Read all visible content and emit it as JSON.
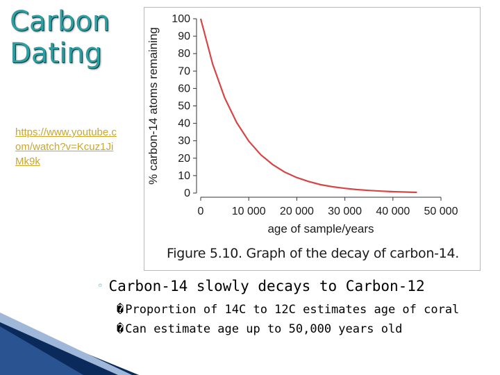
{
  "slide": {
    "title_line1": "Carbon",
    "title_line2": "Dating",
    "link_text": "https://www.youtube.com/watch?v=Kcuz1JiMk9k",
    "accent_color": "#2d9fa3",
    "link_color": "#c7a72f"
  },
  "figure": {
    "caption": "Figure 5.10. Graph of the decay of carbon-14."
  },
  "bullets": {
    "main": "Carbon-14 slowly decays to Carbon-12",
    "main_marker": "◦",
    "sub": [
      {
        "marker": "�",
        "text": "Proportion of 14C to 12C estimates age of coral"
      },
      {
        "marker": "�",
        "text": "Can estimate age up to 50,000 years old"
      }
    ]
  },
  "chart_data": {
    "type": "line",
    "title": "",
    "xlabel": "age of sample/years",
    "ylabel": "% carbon-14 atoms remaining",
    "xlim": [
      0,
      50000
    ],
    "ylim": [
      0,
      100
    ],
    "x_ticks": [
      0,
      10000,
      20000,
      30000,
      40000,
      50000
    ],
    "x_tick_labels": [
      "0",
      "10 000",
      "20 000",
      "30 000",
      "40 000",
      "50 000"
    ],
    "y_ticks": [
      0,
      10,
      20,
      30,
      40,
      50,
      60,
      70,
      80,
      90,
      100
    ],
    "y_tick_labels": [
      "0",
      "10",
      "20",
      "30",
      "40",
      "50",
      "60",
      "70",
      "80",
      "90",
      "100"
    ],
    "grid": false,
    "line_color": "#d64545",
    "series": [
      {
        "x": [
          0,
          2500,
          5000,
          7500,
          10000,
          12500,
          15000,
          17500,
          20000,
          22500,
          25000,
          27500,
          30000,
          32500,
          35000,
          37500,
          40000,
          42500,
          45000
        ],
        "values": [
          100,
          73.9,
          54.6,
          40.4,
          29.8,
          22.0,
          16.3,
          12.0,
          8.9,
          6.6,
          4.8,
          3.6,
          2.7,
          2.0,
          1.5,
          1.1,
          0.8,
          0.6,
          0.4
        ]
      }
    ]
  }
}
